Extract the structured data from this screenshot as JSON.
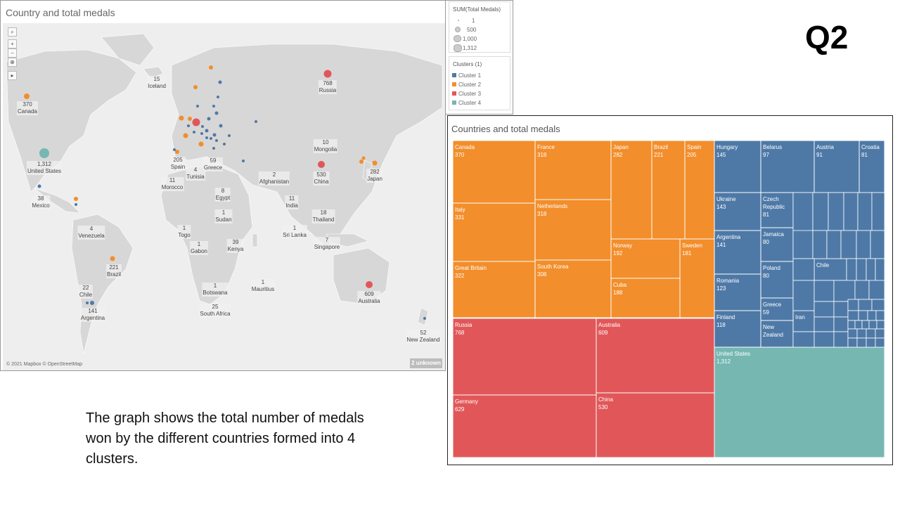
{
  "slide_label": "Q2",
  "caption": "The graph shows the total number of medals won by the different countries formed into 4 clusters.",
  "colors": {
    "cluster1": "#4e79a7",
    "cluster2": "#f28e2b",
    "cluster3": "#e15759",
    "cluster4": "#76b7b2"
  },
  "map": {
    "title": "Country and total medals",
    "attribution": "© 2021 Mapbox © OpenStreetMap",
    "unknown_badge": "2 unknown",
    "tools": [
      "search-icon",
      "zoom-in-icon",
      "zoom-out-icon",
      "pin-icon",
      "expand-icon"
    ],
    "labels": {
      "iceland": {
        "value": "15",
        "name": "Iceland"
      },
      "canada": {
        "value": "370",
        "name": "Canada"
      },
      "russia": {
        "value": "768",
        "name": "Russia"
      },
      "united_states": {
        "value": "1,312",
        "name": "United States"
      },
      "mongolia": {
        "value": "10",
        "name": "Mongolia"
      },
      "spain": {
        "value": "205",
        "name": "Spain"
      },
      "tunisia": {
        "value": "4",
        "name": "Tunisia"
      },
      "greece": {
        "value": "59",
        "name": "Greece"
      },
      "afghanistan": {
        "value": "2",
        "name": "Afghanistan"
      },
      "china": {
        "value": "530",
        "name": "China"
      },
      "japan": {
        "value": "282",
        "name": "Japan"
      },
      "morocco": {
        "value": "11",
        "name": "Morocco"
      },
      "egypt": {
        "value": "8",
        "name": "Egypt"
      },
      "india": {
        "value": "11",
        "name": "India"
      },
      "mexico": {
        "value": "38",
        "name": "Mexico"
      },
      "sudan": {
        "value": "1",
        "name": "Sudan"
      },
      "thailand": {
        "value": "18",
        "name": "Thailand"
      },
      "venezuela": {
        "value": "4",
        "name": "Venezuela"
      },
      "togo": {
        "value": "1",
        "name": "Togo"
      },
      "gabon": {
        "value": "1",
        "name": "Gabon"
      },
      "kenya": {
        "value": "39",
        "name": "Kenya"
      },
      "sri_lanka": {
        "value": "1",
        "name": "Sri Lanka"
      },
      "singapore": {
        "value": "7",
        "name": "Singapore"
      },
      "brazil": {
        "value": "221",
        "name": "Brazil"
      },
      "chile": {
        "value": "22",
        "name": "Chile"
      },
      "botswana": {
        "value": "1",
        "name": "Botswana"
      },
      "mauritius": {
        "value": "1",
        "name": "Mauritius"
      },
      "australia": {
        "value": "609",
        "name": "Australia"
      },
      "argentina": {
        "value": "141",
        "name": "Argentina"
      },
      "south_africa": {
        "value": "25",
        "name": "South Africa"
      },
      "new_zealand": {
        "value": "52",
        "name": "New Zealand"
      }
    }
  },
  "size_legend": {
    "title": "SUM(Total Medals)",
    "items": [
      "1",
      "500",
      "1,000",
      "1,312"
    ]
  },
  "cluster_legend": {
    "title": "Clusters (1)",
    "items": [
      "Cluster 1",
      "Cluster 2",
      "Cluster 3",
      "Cluster 4"
    ]
  },
  "treemap": {
    "title": "Countries and total medals",
    "cells": [
      {
        "name": "Canada",
        "value": "370",
        "cluster": 2
      },
      {
        "name": "France",
        "value": "318",
        "cluster": 2
      },
      {
        "name": "Japan",
        "value": "282",
        "cluster": 2
      },
      {
        "name": "Brazil",
        "value": "221",
        "cluster": 2
      },
      {
        "name": "Spain",
        "value": "205",
        "cluster": 2
      },
      {
        "name": "Italy",
        "value": "331",
        "cluster": 2
      },
      {
        "name": "Netherlands",
        "value": "318",
        "cluster": 2
      },
      {
        "name": "Norway",
        "value": "192",
        "cluster": 2
      },
      {
        "name": "Sweden",
        "value": "181",
        "cluster": 2
      },
      {
        "name": "Great Britain",
        "value": "322",
        "cluster": 2
      },
      {
        "name": "South Korea",
        "value": "308",
        "cluster": 2
      },
      {
        "name": "Cuba",
        "value": "188",
        "cluster": 2
      },
      {
        "name": "Russia",
        "value": "768",
        "cluster": 3
      },
      {
        "name": "Australia",
        "value": "609",
        "cluster": 3
      },
      {
        "name": "Germany",
        "value": "629",
        "cluster": 3
      },
      {
        "name": "China",
        "value": "530",
        "cluster": 3
      },
      {
        "name": "Hungary",
        "value": "145",
        "cluster": 1
      },
      {
        "name": "Belarus",
        "value": "97",
        "cluster": 1
      },
      {
        "name": "Austria",
        "value": "91",
        "cluster": 1
      },
      {
        "name": "Croatia",
        "value": "81",
        "cluster": 1
      },
      {
        "name": "Ukraine",
        "value": "143",
        "cluster": 1
      },
      {
        "name": "Czech Republic",
        "value": "81",
        "cluster": 1
      },
      {
        "name": "Argentina",
        "value": "141",
        "cluster": 1
      },
      {
        "name": "Jamaica",
        "value": "80",
        "cluster": 1
      },
      {
        "name": "Romania",
        "value": "123",
        "cluster": 1
      },
      {
        "name": "Poland",
        "value": "80",
        "cluster": 1
      },
      {
        "name": "Chile",
        "value": "",
        "cluster": 1
      },
      {
        "name": "Finland",
        "value": "118",
        "cluster": 1
      },
      {
        "name": "Greece",
        "value": "59",
        "cluster": 1
      },
      {
        "name": "Iran",
        "value": "",
        "cluster": 1
      },
      {
        "name": "New Zealand",
        "value": "",
        "cluster": 1
      },
      {
        "name": "United States",
        "value": "1,312",
        "cluster": 4
      }
    ]
  }
}
